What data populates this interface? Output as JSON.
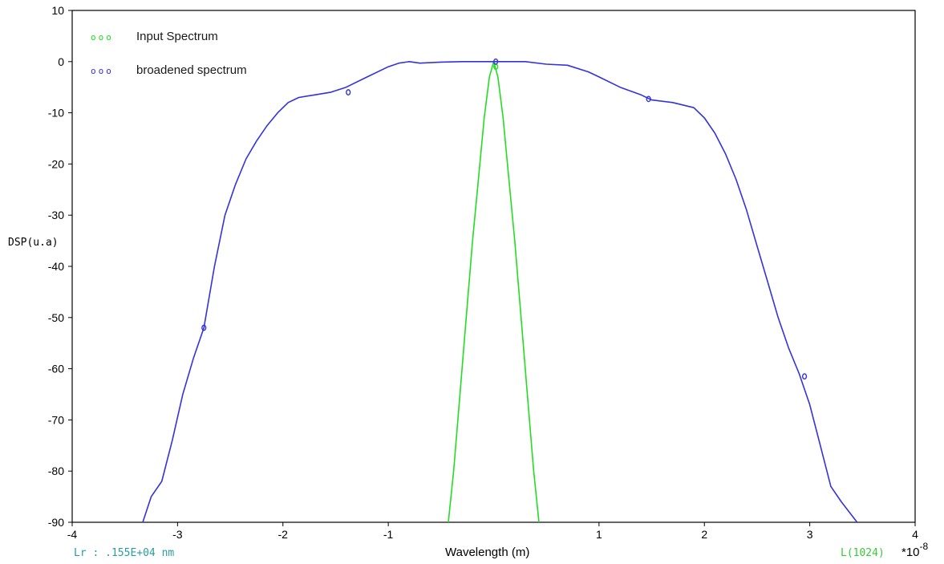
{
  "chart_data": {
    "type": "line",
    "title": "",
    "xlabel": "Wavelength (m)",
    "ylabel": "DSP(u.a)",
    "x_multiplier_label": "*10",
    "x_multiplier_exp": "-8",
    "xlim": [
      -4,
      4
    ],
    "ylim": [
      -90,
      10
    ],
    "xticks": [
      -4,
      -3,
      -2,
      -1,
      1,
      2,
      3,
      4
    ],
    "yticks": [
      10,
      0,
      -10,
      -20,
      -30,
      -40,
      -50,
      -60,
      -70,
      -80,
      -90
    ],
    "grid": false,
    "legend_position": "top-left",
    "footer_left": "Lr : .155E+04 nm",
    "footer_right": "L(1024)",
    "footer_left_color": "#2a9d9d",
    "footer_right_color": "#33cc33",
    "series": [
      {
        "name": "Input Spectrum",
        "color": "#22dd22",
        "marker_glyphs": "ooo",
        "x": [
          -0.43,
          -0.38,
          -0.32,
          -0.26,
          -0.2,
          -0.14,
          -0.09,
          -0.04,
          0,
          0.04,
          0.09,
          0.14,
          0.2,
          0.26,
          0.32,
          0.38,
          0.43
        ],
        "y": [
          -90,
          -80,
          -65,
          -50,
          -35,
          -22,
          -11,
          -3,
          0,
          -3,
          -11,
          -22,
          -35,
          -50,
          -65,
          -80,
          -90
        ],
        "markers_x": [
          0.02
        ],
        "markers_y": [
          -1
        ]
      },
      {
        "name": "broadened spectrum",
        "color": "#3333dd",
        "marker_glyphs": "ooo",
        "x": [
          -3.33,
          -3.25,
          -3.15,
          -3.05,
          -2.95,
          -2.85,
          -2.75,
          -2.65,
          -2.55,
          -2.45,
          -2.35,
          -2.25,
          -2.15,
          -2.05,
          -1.95,
          -1.85,
          -1.7,
          -1.55,
          -1.4,
          -1.2,
          -1.0,
          -0.9,
          -0.8,
          -0.7,
          -0.5,
          -0.3,
          0,
          0.3,
          0.5,
          0.7,
          0.9,
          1.0,
          1.2,
          1.4,
          1.5,
          1.7,
          1.9,
          2.0,
          2.1,
          2.2,
          2.3,
          2.4,
          2.5,
          2.6,
          2.7,
          2.8,
          2.9,
          3.0,
          3.1,
          3.2,
          3.3,
          3.45
        ],
        "y": [
          -90,
          -85,
          -82,
          -74,
          -65,
          -58,
          -52,
          -40,
          -30,
          -24,
          -19,
          -15.5,
          -12.5,
          -10,
          -8,
          -7,
          -6.5,
          -6,
          -5,
          -3,
          -1,
          -0.3,
          0,
          -0.3,
          -0.1,
          0,
          0,
          0,
          -0.5,
          -0.7,
          -2,
          -3,
          -5,
          -6.5,
          -7.5,
          -8,
          -9,
          -11,
          -14,
          -18,
          -23,
          -29,
          -36,
          -43,
          -50,
          -56,
          -61,
          -67,
          -75,
          -83,
          -86,
          -90
        ],
        "markers_x": [
          -2.75,
          -1.38,
          0.02,
          1.47,
          2.95
        ],
        "markers_y": [
          -52,
          -6,
          0,
          -7.3,
          -61.5
        ]
      }
    ]
  }
}
